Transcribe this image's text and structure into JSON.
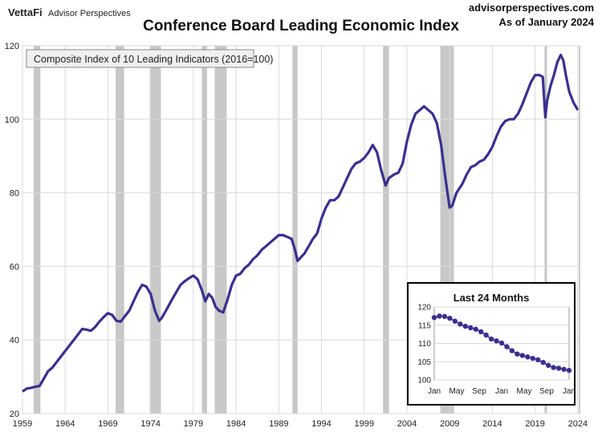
{
  "header": {
    "brand": "VettaFi",
    "brand_sub": "Advisor Perspectives",
    "title": "Conference Board Leading Economic Index",
    "site": "advisorperspectives.com",
    "date": "As of January 2024"
  },
  "colors": {
    "line": "#3b2f8f",
    "recession": "#c8c8c8",
    "grid": "#d9d9d9",
    "plot_bg": "#ffffff"
  },
  "chart_data": [
    {
      "type": "line",
      "series_label": "Composite Index of 10 Leading Indicators (2016=100)",
      "xlim": [
        1959,
        2024.2
      ],
      "ylim": [
        20,
        120
      ],
      "x_ticks": [
        1959,
        1964,
        1969,
        1974,
        1979,
        1984,
        1989,
        1994,
        1999,
        2004,
        2009,
        2014,
        2019,
        2024
      ],
      "y_ticks": [
        20,
        40,
        60,
        80,
        100,
        120
      ],
      "grid": true,
      "recessions": [
        [
          1960.3,
          1961.1
        ],
        [
          1969.9,
          1970.9
        ],
        [
          1973.9,
          1975.2
        ],
        [
          1980.0,
          1980.6
        ],
        [
          1981.5,
          1982.9
        ],
        [
          1990.6,
          1991.2
        ],
        [
          2001.2,
          2001.9
        ],
        [
          2007.9,
          2009.5
        ],
        [
          2020.1,
          2020.4
        ]
      ],
      "x": [
        1959.0,
        1959.5,
        1960.0,
        1960.5,
        1961.0,
        1961.5,
        1962.0,
        1962.5,
        1963.0,
        1963.5,
        1964.0,
        1964.5,
        1965.0,
        1965.5,
        1966.0,
        1966.5,
        1967.0,
        1967.5,
        1968.0,
        1968.5,
        1969.0,
        1969.5,
        1970.0,
        1970.5,
        1971.0,
        1971.5,
        1972.0,
        1972.5,
        1973.0,
        1973.5,
        1974.0,
        1974.5,
        1975.0,
        1975.3,
        1975.8,
        1976.5,
        1977.0,
        1977.5,
        1978.0,
        1978.5,
        1979.0,
        1979.5,
        1980.0,
        1980.4,
        1980.8,
        1981.2,
        1981.6,
        1982.0,
        1982.5,
        1983.0,
        1983.5,
        1984.0,
        1984.5,
        1985.0,
        1985.5,
        1986.0,
        1986.5,
        1987.0,
        1987.5,
        1988.0,
        1988.5,
        1989.0,
        1989.5,
        1990.0,
        1990.5,
        1990.9,
        1991.2,
        1991.6,
        1992.0,
        1992.5,
        1993.0,
        1993.5,
        1994.0,
        1994.5,
        1995.0,
        1995.5,
        1996.0,
        1996.5,
        1997.0,
        1997.5,
        1998.0,
        1998.5,
        1999.0,
        1999.5,
        2000.0,
        2000.5,
        2001.0,
        2001.5,
        2001.9,
        2002.5,
        2003.0,
        2003.5,
        2004.0,
        2004.5,
        2005.0,
        2005.5,
        2006.0,
        2006.5,
        2007.0,
        2007.5,
        2008.0,
        2008.5,
        2009.0,
        2009.3,
        2009.8,
        2010.5,
        2011.0,
        2011.5,
        2012.0,
        2012.5,
        2013.0,
        2013.5,
        2014.0,
        2014.5,
        2015.0,
        2015.5,
        2016.0,
        2016.5,
        2017.0,
        2017.5,
        2018.0,
        2018.5,
        2019.0,
        2019.5,
        2019.9,
        2020.2,
        2020.4,
        2020.8,
        2021.2,
        2021.6,
        2022.0,
        2022.3,
        2022.6,
        2023.0,
        2023.5,
        2024.0
      ],
      "y": [
        26.0,
        26.8,
        27.0,
        27.3,
        27.5,
        29.5,
        31.5,
        32.5,
        34.0,
        35.5,
        37.0,
        38.5,
        40.0,
        41.5,
        43.0,
        42.8,
        42.5,
        43.5,
        45.0,
        46.2,
        47.3,
        46.8,
        45.2,
        45.0,
        46.5,
        48.0,
        50.5,
        53.0,
        55.0,
        54.5,
        52.5,
        48.0,
        45.2,
        46.0,
        48.0,
        51.0,
        53.0,
        55.0,
        56.0,
        56.8,
        57.5,
        56.5,
        53.5,
        50.5,
        52.5,
        51.5,
        49.0,
        48.0,
        47.5,
        51.0,
        55.0,
        57.5,
        58.0,
        59.5,
        60.5,
        62.0,
        63.0,
        64.5,
        65.5,
        66.5,
        67.5,
        68.5,
        68.5,
        68.0,
        67.5,
        64.5,
        61.5,
        62.5,
        63.5,
        65.5,
        67.5,
        69.0,
        73.0,
        76.0,
        78.0,
        78.0,
        79.0,
        81.5,
        84.0,
        86.5,
        88.0,
        88.5,
        89.5,
        91.0,
        93.0,
        91.0,
        86.0,
        82.0,
        84.0,
        85.0,
        85.5,
        88.0,
        94.0,
        98.5,
        101.5,
        102.5,
        103.5,
        102.5,
        101.5,
        99.0,
        93.0,
        84.0,
        76.0,
        76.5,
        80.0,
        82.5,
        85.0,
        87.0,
        87.5,
        88.5,
        89.0,
        90.5,
        92.5,
        95.5,
        98.0,
        99.5,
        100.0,
        100.0,
        101.5,
        104.0,
        107.0,
        110.0,
        112.0,
        112.0,
        111.5,
        100.5,
        105.0,
        109.0,
        112.0,
        115.5,
        117.5,
        116.0,
        112.0,
        107.5,
        104.5,
        102.5
      ]
    },
    {
      "type": "scatter",
      "title": "Last 24 Months",
      "categories": [
        "Jan",
        "May",
        "Sep",
        "Jan",
        "May",
        "Sep",
        "Jan"
      ],
      "ylim": [
        100,
        120
      ],
      "y_ticks": [
        100,
        105,
        110,
        115,
        120
      ],
      "grid": true,
      "values": [
        117.1,
        117.5,
        117.4,
        116.9,
        116.1,
        115.3,
        114.7,
        114.3,
        113.9,
        113.2,
        112.3,
        111.2,
        110.7,
        110.1,
        109.1,
        108.0,
        107.1,
        106.7,
        106.3,
        105.9,
        105.5,
        104.8,
        104.0,
        103.4,
        103.2,
        102.9,
        102.6
      ]
    }
  ]
}
